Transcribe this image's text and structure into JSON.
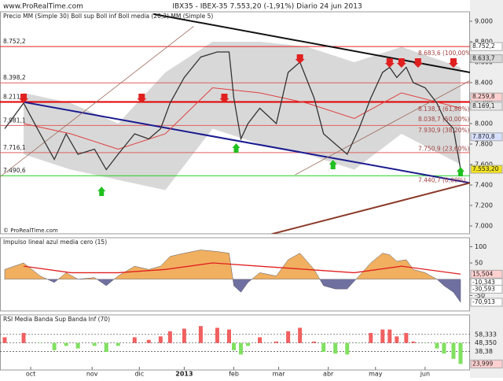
{
  "header": {
    "site": "www.ProRealTime.com",
    "title": "IBX35 - IBEX-35   7.553,20 (-1,91%)   Diario  24 jun 2013",
    "copyright": "© ProRealTime.com"
  },
  "chart_data": [
    {
      "type": "line",
      "title": "Precio MM (Simple 30) Boll sup Boll inf Boll media (20,2) MM (Simple 5)",
      "xlim": [
        0,
        199
      ],
      "ylim": [
        6923,
        9092
      ],
      "yticks": [
        {
          "value": 7000,
          "label": "7.000"
        },
        {
          "value": 7200,
          "label": "7.200"
        },
        {
          "value": 7400,
          "label": "7.400"
        },
        {
          "value": 7600,
          "label": "7.600"
        },
        {
          "value": 7800,
          "label": "7.800"
        },
        {
          "value": 8000,
          "label": "8.000"
        },
        {
          "value": 8200,
          "label": "8.200"
        },
        {
          "value": 8400,
          "label": "8.400"
        },
        {
          "value": 8600,
          "label": "8.600"
        },
        {
          "value": 8800,
          "label": "8.800"
        },
        {
          "value": 9000,
          "label": "9.000"
        }
      ],
      "xticks": [
        {
          "value": 13,
          "label": "oct"
        },
        {
          "value": 39,
          "label": "nov"
        },
        {
          "value": 59,
          "label": "dic"
        },
        {
          "value": 78,
          "label": "2013"
        },
        {
          "value": 99,
          "label": "feb"
        },
        {
          "value": 118,
          "label": "mar"
        },
        {
          "value": 139,
          "label": "abr"
        },
        {
          "value": 159,
          "label": "may"
        },
        {
          "value": 180,
          "label": "jun"
        }
      ],
      "x": [
        2,
        10,
        17,
        23,
        28,
        33,
        40,
        45,
        50,
        57,
        63,
        68,
        72,
        78,
        85,
        92,
        97,
        99,
        102,
        105,
        110,
        117,
        122,
        127,
        133,
        137,
        142,
        147,
        152,
        157,
        162,
        165,
        168,
        172,
        175,
        180,
        185,
        188,
        192,
        195
      ],
      "values": [
        7950,
        8200,
        7900,
        7650,
        7900,
        7700,
        7750,
        7550,
        7700,
        7900,
        7850,
        7950,
        8200,
        8450,
        8650,
        8700,
        8700,
        8250,
        7850,
        8000,
        8150,
        8000,
        8500,
        8600,
        8250,
        7900,
        7800,
        7700,
        7950,
        8250,
        8500,
        8550,
        8450,
        8550,
        8400,
        8350,
        8200,
        8050,
        7950,
        7553.2
      ],
      "color": "#333333",
      "ma": {
        "color": "#e04040",
        "x": [
          10,
          30,
          50,
          70,
          90,
          110,
          130,
          150,
          170,
          195
        ],
        "values": [
          8000,
          7900,
          7750,
          7900,
          8350,
          8300,
          8200,
          8050,
          8300,
          8150
        ]
      },
      "bands": {
        "color": "#b8b8b8",
        "x": [
          10,
          30,
          50,
          70,
          90,
          110,
          130,
          150,
          170,
          195
        ],
        "upper": [
          8300,
          8200,
          8000,
          8500,
          8800,
          8800,
          8750,
          8600,
          8750,
          8550
        ],
        "lower": [
          7700,
          7550,
          7450,
          7350,
          7950,
          7800,
          7700,
          7550,
          7900,
          7600
        ]
      },
      "levels": [
        {
          "value": 8752.2,
          "label": "8.752,2",
          "color": "#e02020"
        },
        {
          "value": 8398.2,
          "label": "8.398,2",
          "color": "#e06060"
        },
        {
          "value": 8211,
          "label": "8.211",
          "color": "#e00000"
        },
        {
          "value": 7981.1,
          "label": "7.981,1",
          "color": "#e06060"
        },
        {
          "value": 7716.1,
          "label": "7.716,1",
          "color": "#e06060"
        },
        {
          "value": 7490.6,
          "label": "7.490,6",
          "color": "#20d020"
        }
      ],
      "trendlines": [
        {
          "color": "#111111",
          "points": [
            [
              65,
              9070
            ],
            [
              199,
              8500
            ]
          ]
        },
        {
          "color": "#1a1a90",
          "points": [
            [
              10,
              8210
            ],
            [
              199,
              7420
            ]
          ]
        },
        {
          "color": "#8b3a2a",
          "points": [
            [
              115,
              6920
            ],
            [
              199,
              7420
            ]
          ]
        },
        {
          "color": "#9b6a5a",
          "points": [
            [
              0,
              7480
            ],
            [
              82,
              8950
            ]
          ]
        },
        {
          "color": "#9b6a5a",
          "points": [
            [
              125,
              7500
            ],
            [
              199,
              8420
            ]
          ]
        }
      ],
      "fib": [
        {
          "value": 8683.6,
          "label": "8.683,6 (100,00%)"
        },
        {
          "value": 8138.7,
          "label": "8.138,7 (61,80%)"
        },
        {
          "value": 8038.7,
          "label": "8.038,7 (50,00%)"
        },
        {
          "value": 7930.9,
          "label": "7.930,9 (38,20%)"
        },
        {
          "value": 7750.9,
          "label": "7.750,9 (23,60%)"
        },
        {
          "value": 7440.7,
          "label": "7.440,7 (0,00%)"
        }
      ],
      "sell": [
        10,
        60,
        95,
        127,
        165,
        170,
        177,
        192
      ],
      "buy": [
        43,
        100,
        141,
        195
      ],
      "right_labels": [
        {
          "value": 8752.2,
          "label": "8.752,2",
          "color": "#ffffff"
        },
        {
          "value": 8633.7,
          "label": "8.633,7",
          "color": "#d8d8d8"
        },
        {
          "value": 8259.8,
          "label": "8.259,8",
          "color": "#ffd0d0"
        },
        {
          "value": 8169.1,
          "label": "8.169,1",
          "color": "#e8e8e8"
        },
        {
          "value": 7870.8,
          "label": "7.870,8",
          "color": "#d8e0ff"
        },
        {
          "value": 7553.2,
          "label": "7.553,20",
          "color": "#f0e020"
        }
      ]
    },
    {
      "type": "area",
      "title": "Impulso lineal azul media cero (15)",
      "xlim": [
        0,
        199
      ],
      "ylim": [
        -97.5,
        127.5
      ],
      "yticks": [
        -50,
        0,
        50,
        100
      ],
      "x": [
        2,
        10,
        17,
        23,
        28,
        33,
        40,
        45,
        50,
        57,
        63,
        68,
        72,
        78,
        85,
        92,
        97,
        99,
        102,
        105,
        110,
        117,
        122,
        127,
        133,
        137,
        142,
        147,
        152,
        157,
        162,
        165,
        168,
        172,
        175,
        180,
        185,
        188,
        192,
        195
      ],
      "values": [
        30,
        50,
        10,
        -10,
        20,
        0,
        5,
        -20,
        10,
        40,
        30,
        40,
        70,
        80,
        90,
        85,
        80,
        -20,
        -40,
        -10,
        20,
        10,
        60,
        80,
        30,
        -20,
        -30,
        -30,
        10,
        50,
        80,
        75,
        55,
        60,
        30,
        20,
        0,
        -20,
        -40,
        -70.913
      ],
      "colors": [
        "#f0b060",
        "#7070a0"
      ],
      "media": {
        "color": "#e02020",
        "x": [
          10,
          30,
          50,
          70,
          90,
          110,
          130,
          150,
          170,
          195
        ],
        "values": [
          40,
          20,
          20,
          30,
          50,
          40,
          30,
          20,
          40,
          15.504
        ]
      },
      "right_labels": [
        {
          "value": 15.504,
          "label": "15,504",
          "color": "#ffd0d0"
        },
        {
          "value": -10.343,
          "label": "-10,343",
          "color": "#ffffff"
        },
        {
          "value": -30.593,
          "label": "-30,593",
          "color": "#ffffff"
        },
        {
          "value": -70.913,
          "label": "-70,913",
          "color": "#ffffff"
        }
      ]
    },
    {
      "type": "bar",
      "title": "RSI Media Banda Sup Banda Inf (70)",
      "xlim": [
        0,
        199
      ],
      "ylim": [
        17,
        81
      ],
      "x": [
        2,
        10,
        17,
        23,
        28,
        33,
        40,
        45,
        50,
        57,
        63,
        68,
        72,
        78,
        85,
        92,
        97,
        99,
        102,
        105,
        110,
        117,
        122,
        127,
        133,
        137,
        142,
        147,
        152,
        157,
        162,
        165,
        168,
        172,
        175,
        180,
        185,
        188,
        192,
        195
      ],
      "values": [
        55,
        60,
        48,
        40,
        45,
        42,
        45,
        38,
        45,
        55,
        52,
        56,
        62,
        65,
        68,
        66,
        64,
        40,
        35,
        45,
        55,
        50,
        62,
        66,
        50,
        38,
        36,
        35,
        48,
        60,
        64,
        64,
        56,
        60,
        50,
        48,
        42,
        36,
        30,
        23.999
      ],
      "colors": [
        "#f06060",
        "#80e060"
      ],
      "levels": [
        {
          "value": 58.333,
          "label": "58,333"
        },
        {
          "value": 48.35,
          "label": "48,350"
        },
        {
          "value": 38.38,
          "label": "38,38"
        }
      ],
      "right_labels": [
        {
          "value": 23.999,
          "label": "23,999",
          "color": "#ffd0d0"
        }
      ]
    }
  ]
}
